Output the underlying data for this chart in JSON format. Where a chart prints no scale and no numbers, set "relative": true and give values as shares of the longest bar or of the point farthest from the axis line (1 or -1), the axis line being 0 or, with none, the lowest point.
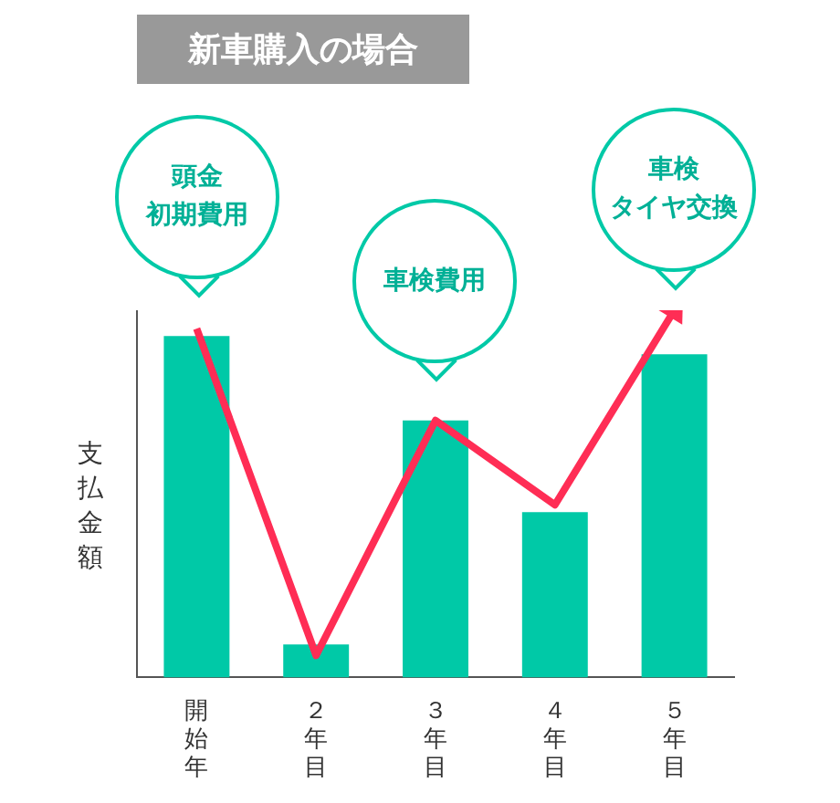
{
  "chart_data": {
    "type": "bar",
    "title": "新車購入の場合",
    "ylabel": "支払金額",
    "relative": true,
    "categories": [
      "開始年",
      "２年目",
      "３年目",
      "４年目",
      "５年目"
    ],
    "series": [
      {
        "type": "bar",
        "color": "#00c9a7",
        "values": [
          0.93,
          0.09,
          0.7,
          0.45,
          0.88
        ]
      },
      {
        "type": "line",
        "color": "#ff2d55",
        "values": [
          0.95,
          0.06,
          0.7,
          0.47,
          1.0
        ]
      }
    ],
    "annotations": [
      "頭金",
      "初期費用",
      "車検費用",
      "車検",
      "タイヤ交換"
    ]
  }
}
